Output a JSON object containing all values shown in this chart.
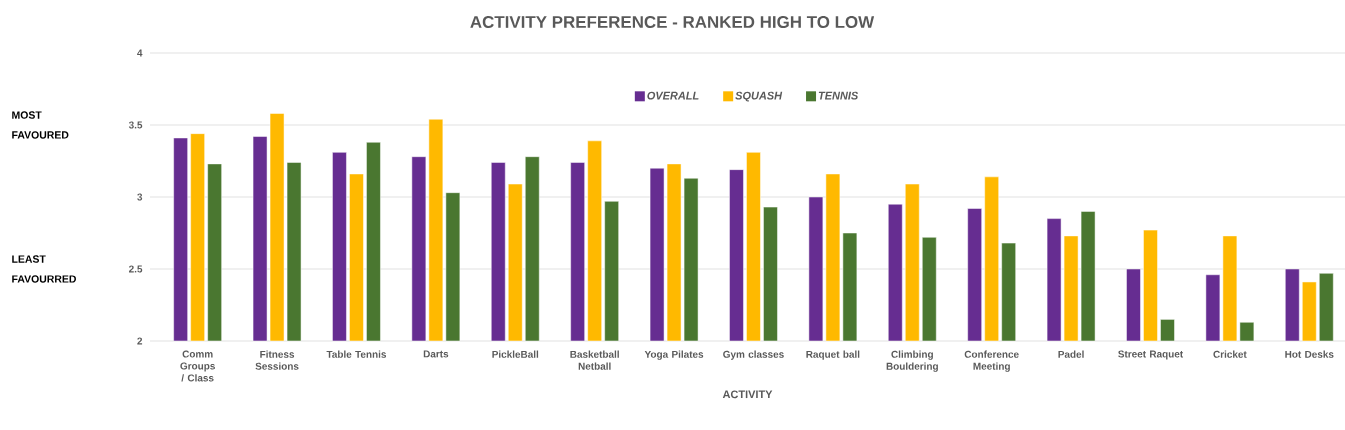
{
  "chart_data": {
    "type": "bar",
    "title": "ACTIVITY PREFERENCE - RANKED HIGH TO LOW",
    "xlabel": "ACTIVITY",
    "categories": [
      "Comm Groups / Class",
      "Fitness Sessions",
      "Table Tennis",
      "Darts",
      "PickleBall",
      "Basketball Netball",
      "Yoga Pilates",
      "Gym classes",
      "Raquet ball",
      "Climbing Bouldering",
      "Conference Meeting",
      "Padel",
      "Street Raquet",
      "Cricket",
      "Hot Desks"
    ],
    "series": [
      {
        "name": "OVERALL",
        "color": "#662d91",
        "values": [
          3.41,
          3.42,
          3.31,
          3.28,
          3.24,
          3.24,
          3.2,
          3.19,
          3.0,
          2.95,
          2.92,
          2.85,
          2.5,
          2.46,
          2.5
        ]
      },
      {
        "name": "SQUASH",
        "color": "#ffb900",
        "values": [
          3.44,
          3.58,
          3.16,
          3.54,
          3.09,
          3.39,
          3.23,
          3.31,
          3.16,
          3.09,
          3.14,
          2.73,
          2.77,
          2.73,
          2.41
        ]
      },
      {
        "name": "TENNIS",
        "color": "#4a7730",
        "values": [
          3.23,
          3.24,
          3.38,
          3.03,
          3.28,
          2.97,
          3.13,
          2.93,
          2.75,
          2.72,
          2.68,
          2.9,
          2.15,
          2.13,
          2.47
        ]
      }
    ],
    "ylim": [
      2,
      4
    ],
    "yticks": [
      2,
      2.5,
      3,
      3.5,
      4
    ],
    "grid": "y",
    "legend": "top",
    "annotations": [
      "MOST FAVOURED",
      "LEAST FAVOURRED"
    ]
  }
}
